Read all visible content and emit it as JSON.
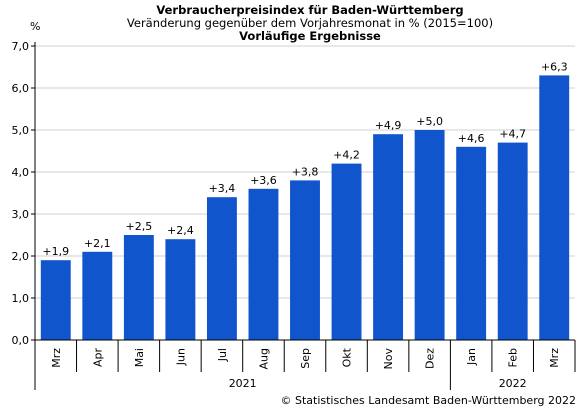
{
  "chart_data": {
    "type": "bar",
    "title": "Verbraucherpreisindex für Baden-Württemberg",
    "subtitle": "Veränderung gegenüber dem Vorjahresmonat in % (2015=100)",
    "subtitle2": "Vorläufige Ergebnisse",
    "ylabel": "%",
    "ylim": [
      0,
      7
    ],
    "yticks": [
      "0,0",
      "1,0",
      "2,0",
      "3,0",
      "4,0",
      "5,0",
      "6,0",
      "7,0"
    ],
    "categories": [
      "Mrz",
      "Apr",
      "Mai",
      "Jun",
      "Jul",
      "Aug",
      "Sep",
      "Okt",
      "Nov",
      "Dez",
      "Jan",
      "Feb",
      "Mrz"
    ],
    "values": [
      1.9,
      2.1,
      2.5,
      2.4,
      3.4,
      3.6,
      3.8,
      4.2,
      4.9,
      5.0,
      4.6,
      4.7,
      6.3
    ],
    "data_labels": [
      "+1,9",
      "+2,1",
      "+2,5",
      "+2,4",
      "+3,4",
      "+3,6",
      "+3,8",
      "+4,2",
      "+4,9",
      "+5,0",
      "+4,6",
      "+4,7",
      "+6,3"
    ],
    "year_groups": [
      {
        "label": "2021",
        "start": 0,
        "end": 9
      },
      {
        "label": "2022",
        "start": 10,
        "end": 12
      }
    ],
    "bar_color": "#1155cc",
    "grid": true
  },
  "copyright": "© Statistisches Landesamt Baden-Württemberg 2022"
}
